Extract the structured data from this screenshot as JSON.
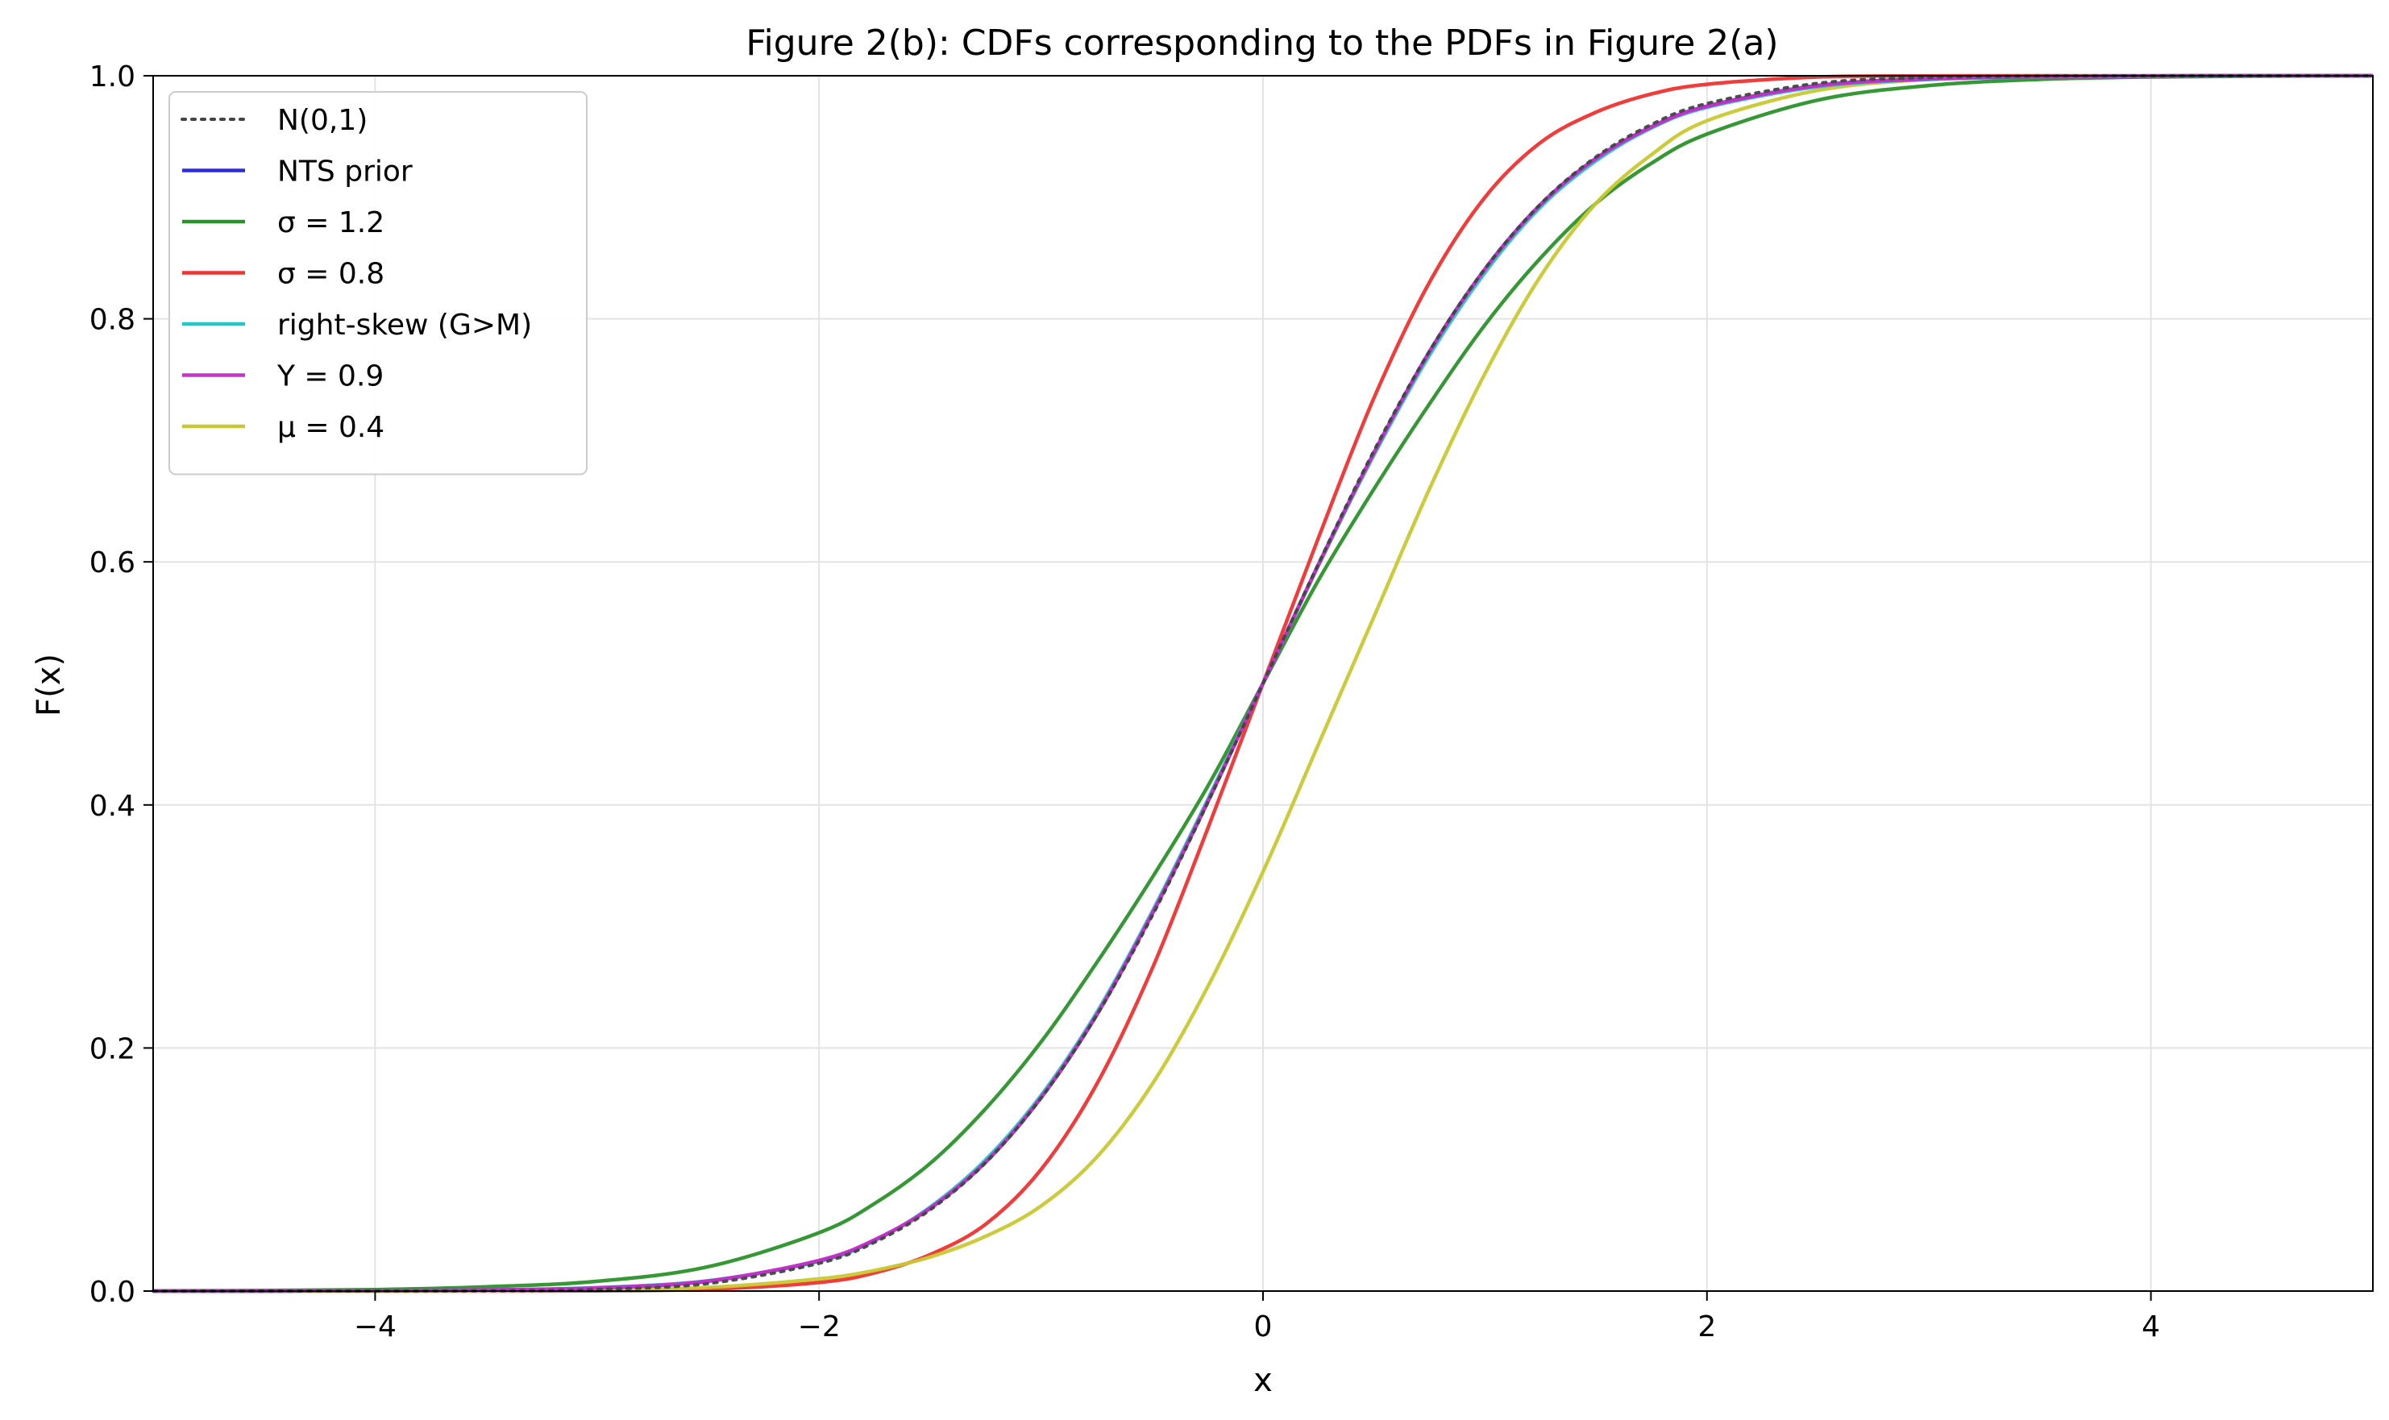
{
  "chart_data": {
    "type": "line",
    "title": "Figure 2(b): CDFs corresponding to the PDFs in Figure 2(a)",
    "xlabel": "x",
    "ylabel": "F(x)",
    "xlim": [
      -5,
      5
    ],
    "ylim": [
      0,
      1
    ],
    "xticks": [
      -4,
      -2,
      0,
      2,
      4
    ],
    "xtick_labels": [
      "−4",
      "−2",
      "0",
      "2",
      "4"
    ],
    "yticks": [
      0,
      0.2,
      0.4,
      0.6,
      0.8,
      1.0
    ],
    "ytick_labels": [
      "0.0",
      "0.2",
      "0.4",
      "0.6",
      "0.8",
      "1.0"
    ],
    "grid": true,
    "legend_position": "upper-left",
    "x": [
      -5,
      -4.5,
      -4,
      -3.5,
      -3,
      -2.5,
      -2,
      -1.75,
      -1.5,
      -1.25,
      -1,
      -0.75,
      -0.5,
      -0.25,
      0,
      0.25,
      0.5,
      0.75,
      1,
      1.25,
      1.5,
      1.75,
      2,
      2.5,
      3,
      3.5,
      4,
      4.5,
      5
    ],
    "series": [
      {
        "name": "N(0,1)",
        "color": "#444444",
        "dash": "dotted",
        "values": [
          0.0,
          0.0,
          0.0,
          0.0002,
          0.0013,
          0.0062,
          0.0228,
          0.0401,
          0.0668,
          0.1056,
          0.1587,
          0.2266,
          0.3085,
          0.4013,
          0.5,
          0.5987,
          0.6915,
          0.7734,
          0.8413,
          0.8944,
          0.9332,
          0.9599,
          0.9772,
          0.9938,
          0.9987,
          0.9998,
          1.0,
          1.0,
          1.0
        ]
      },
      {
        "name": "NTS prior",
        "color": "#2b2be0",
        "dash": "solid",
        "values": [
          0.0,
          0.0,
          0.0003,
          0.0008,
          0.0025,
          0.008,
          0.025,
          0.042,
          0.068,
          0.106,
          0.159,
          0.227,
          0.31,
          0.402,
          0.5,
          0.598,
          0.69,
          0.773,
          0.841,
          0.894,
          0.932,
          0.958,
          0.975,
          0.992,
          0.9975,
          0.9993,
          0.9999,
          1.0,
          1.0
        ]
      },
      {
        "name": "σ = 1.2",
        "color": "#2a922a",
        "dash": "solid",
        "values": [
          0.0002,
          0.0005,
          0.0012,
          0.0035,
          0.008,
          0.02,
          0.048,
          0.072,
          0.105,
          0.15,
          0.205,
          0.27,
          0.34,
          0.415,
          0.5,
          0.585,
          0.66,
          0.73,
          0.795,
          0.85,
          0.895,
          0.928,
          0.952,
          0.98,
          0.992,
          0.997,
          0.999,
          0.9997,
          1.0
        ]
      },
      {
        "name": "σ = 0.8",
        "color": "#f03232",
        "dash": "solid",
        "values": [
          0.0,
          0.0,
          0.0,
          0.0,
          0.0002,
          0.0015,
          0.007,
          0.015,
          0.03,
          0.055,
          0.1,
          0.17,
          0.265,
          0.38,
          0.5,
          0.62,
          0.735,
          0.83,
          0.9,
          0.945,
          0.97,
          0.985,
          0.993,
          0.999,
          0.9999,
          1.0,
          1.0,
          1.0,
          1.0
        ]
      },
      {
        "name": "right-skew (G>M)",
        "color": "#22c8c8",
        "dash": "solid",
        "values": [
          0.0,
          0.0,
          0.0003,
          0.0008,
          0.0028,
          0.0085,
          0.0245,
          0.0415,
          0.069,
          0.108,
          0.161,
          0.229,
          0.312,
          0.404,
          0.5,
          0.597,
          0.688,
          0.77,
          0.838,
          0.892,
          0.93,
          0.957,
          0.974,
          0.991,
          0.997,
          0.999,
          0.9998,
          1.0,
          1.0
        ]
      },
      {
        "name": "Y = 0.9",
        "color": "#c832c8",
        "dash": "solid",
        "values": [
          0.0,
          0.0,
          0.0003,
          0.0009,
          0.0026,
          0.0082,
          0.0252,
          0.0422,
          0.0682,
          0.1062,
          0.1592,
          0.2272,
          0.3102,
          0.4022,
          0.5,
          0.5978,
          0.6898,
          0.7728,
          0.8408,
          0.8938,
          0.9318,
          0.9578,
          0.9748,
          0.9918,
          0.9974,
          0.9992,
          0.9999,
          1.0,
          1.0
        ]
      },
      {
        "name": "μ = 0.4",
        "color": "#c8c832",
        "dash": "solid",
        "values": [
          0.0,
          0.0,
          0.0,
          0.0001,
          0.0008,
          0.003,
          0.01,
          0.017,
          0.028,
          0.045,
          0.07,
          0.11,
          0.17,
          0.25,
          0.345,
          0.45,
          0.555,
          0.66,
          0.755,
          0.835,
          0.895,
          0.935,
          0.963,
          0.988,
          0.997,
          0.9993,
          0.9999,
          1.0,
          1.0
        ]
      }
    ]
  }
}
